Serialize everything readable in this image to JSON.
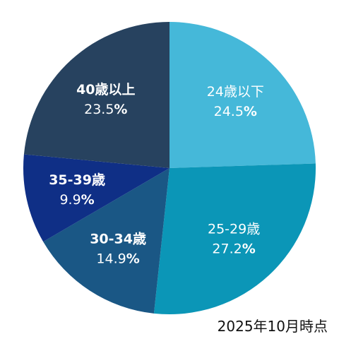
{
  "chart_data": {
    "type": "pie",
    "start_angle_deg": 0,
    "direction": "clockwise",
    "slices": [
      {
        "label": "24歳以下",
        "value": 24.5,
        "value_text": "24.5",
        "unit": "%",
        "color": "#45B8D9",
        "label_bold": false
      },
      {
        "label": "25-29歳",
        "value": 27.2,
        "value_text": "27.2",
        "unit": "%",
        "color": "#0B96B7",
        "label_bold": false
      },
      {
        "label": "30-34歳",
        "value": 14.9,
        "value_text": "14.9",
        "unit": "%",
        "color": "#1A5785",
        "label_bold": true
      },
      {
        "label": "35-39歳",
        "value": 9.9,
        "value_text": "9.9",
        "unit": "%",
        "color": "#0F2F86",
        "label_bold": true
      },
      {
        "label": "40歳以上",
        "value": 23.5,
        "value_text": "23.5",
        "unit": "%",
        "color": "#27425F",
        "label_bold": true
      }
    ]
  },
  "note": "2025年10月時点"
}
